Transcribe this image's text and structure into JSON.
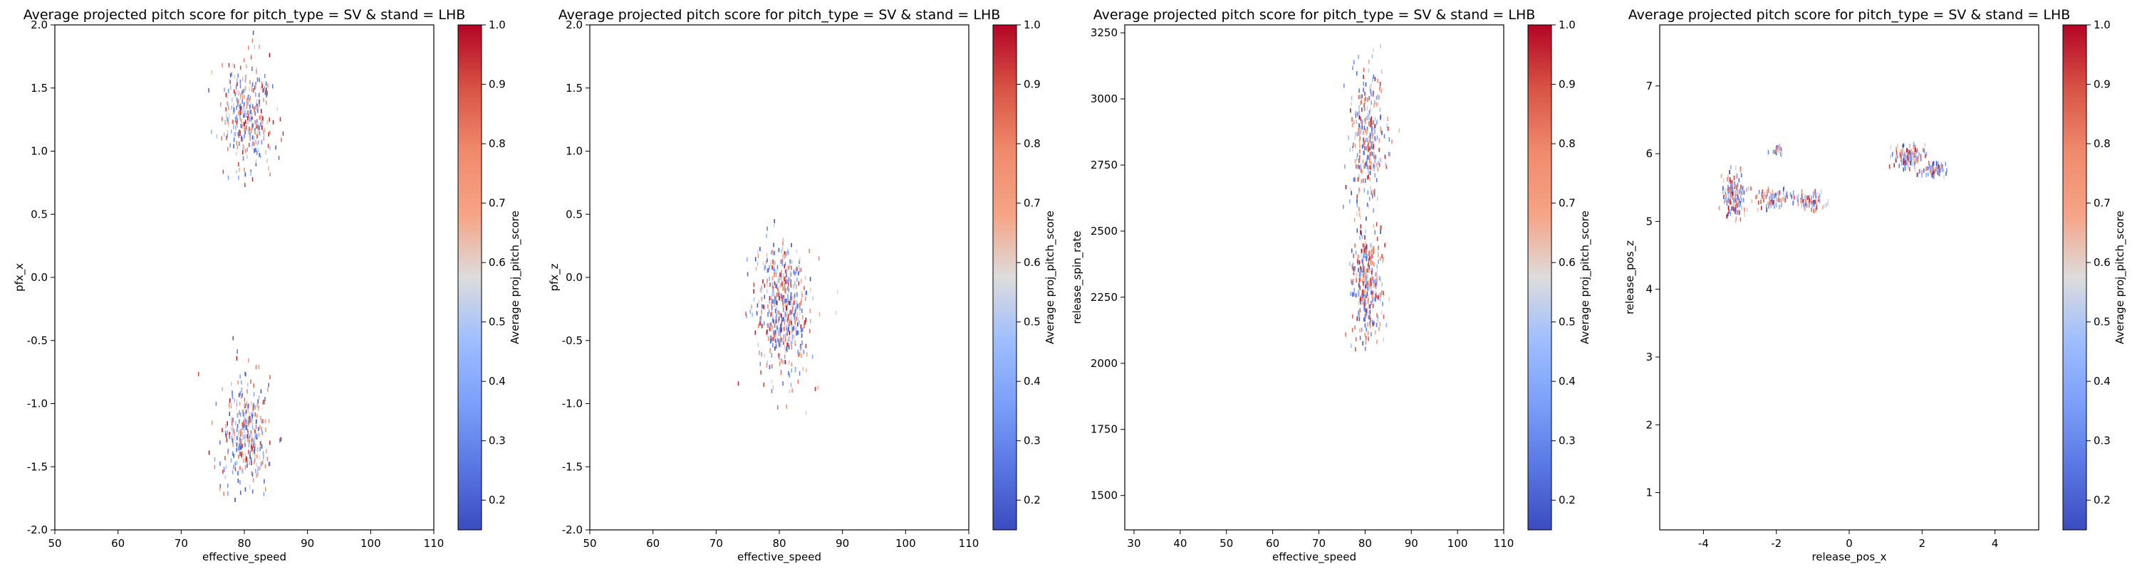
{
  "figure": {
    "colormap_name": "coolwarm",
    "colormap_stops": [
      [
        0.0,
        "#3b4cc0"
      ],
      [
        0.125,
        "#5977e3"
      ],
      [
        0.25,
        "#7b9ff9"
      ],
      [
        0.375,
        "#9ebeff"
      ],
      [
        0.5,
        "#dddcdc"
      ],
      [
        0.625,
        "#f6a385"
      ],
      [
        0.75,
        "#f08a6c"
      ],
      [
        0.875,
        "#d75344"
      ],
      [
        1.0,
        "#b40426"
      ]
    ]
  },
  "chart_data": [
    {
      "type": "scatter",
      "title": "Average projected pitch score for pitch_type = SV & stand = LHB",
      "xlabel": "effective_speed",
      "ylabel": "pfx_x",
      "colorbar_label": "Average proj_pitch_score",
      "xlim": [
        50,
        110
      ],
      "ylim": [
        -2.0,
        2.0
      ],
      "xticks": [
        "50",
        "60",
        "70",
        "80",
        "90",
        "100",
        "110"
      ],
      "yticks": [
        "-2.0",
        "-1.5",
        "-1.0",
        "-0.5",
        "0.0",
        "0.5",
        "1.0",
        "1.5",
        "2.0"
      ],
      "cbar_ticks": [
        "0.2",
        "0.3",
        "0.4",
        "0.5",
        "0.6",
        "0.7",
        "0.8",
        "0.9",
        "1.0"
      ],
      "clim": [
        0.15,
        1.0
      ],
      "clusters": [
        {
          "x_center": 80.5,
          "y_center": 1.3,
          "x_spread": 2.0,
          "y_spread": 0.22,
          "y_min": 0.15,
          "y_max": 1.95,
          "count": 320
        },
        {
          "x_center": 80.0,
          "y_center": -1.25,
          "x_spread": 1.9,
          "y_spread": 0.22,
          "y_min": -1.85,
          "y_max": -0.2,
          "count": 320
        }
      ]
    },
    {
      "type": "scatter",
      "title": "Average projected pitch score for pitch_type = SV & stand = LHB",
      "xlabel": "effective_speed",
      "ylabel": "pfx_z",
      "colorbar_label": "Average proj_pitch_score",
      "xlim": [
        50,
        110
      ],
      "ylim": [
        -2.0,
        2.0
      ],
      "xticks": [
        "50",
        "60",
        "70",
        "80",
        "90",
        "100",
        "110"
      ],
      "yticks": [
        "-2.0",
        "-1.5",
        "-1.0",
        "-0.5",
        "0.0",
        "0.5",
        "1.0",
        "1.5",
        "2.0"
      ],
      "cbar_ticks": [
        "0.2",
        "0.3",
        "0.4",
        "0.5",
        "0.6",
        "0.7",
        "0.8",
        "0.9",
        "1.0"
      ],
      "clim": [
        0.15,
        1.0
      ],
      "clusters": [
        {
          "x_center": 80.5,
          "y_center": -0.25,
          "x_spread": 2.2,
          "y_spread": 0.28,
          "y_min": -1.15,
          "y_max": 0.5,
          "count": 520
        }
      ]
    },
    {
      "type": "scatter",
      "title": "Average projected pitch score for pitch_type = SV & stand = LHB",
      "xlabel": "effective_speed",
      "ylabel": "release_spin_rate",
      "colorbar_label": "Average proj_pitch_score",
      "xlim": [
        28,
        110
      ],
      "ylim": [
        1370,
        3280
      ],
      "xticks": [
        "30",
        "40",
        "50",
        "60",
        "70",
        "80",
        "90",
        "100",
        "110"
      ],
      "yticks": [
        "1500",
        "1750",
        "2000",
        "2250",
        "2500",
        "2750",
        "3000",
        "3250"
      ],
      "cbar_ticks": [
        "0.2",
        "0.3",
        "0.4",
        "0.5",
        "0.6",
        "0.7",
        "0.8",
        "0.9",
        "1.0"
      ],
      "clim": [
        0.15,
        1.0
      ],
      "clusters": [
        {
          "x_center": 80.5,
          "y_center": 2850,
          "x_spread": 1.8,
          "y_spread": 140,
          "y_min": 2450,
          "y_max": 3200,
          "count": 300
        },
        {
          "x_center": 80.5,
          "y_center": 2300,
          "x_spread": 1.8,
          "y_spread": 110,
          "y_min": 1450,
          "y_max": 2620,
          "count": 330
        }
      ]
    },
    {
      "type": "scatter",
      "title": "Average projected pitch score for pitch_type = SV & stand = LHB",
      "xlabel": "release_pos_x",
      "ylabel": "release_pos_z",
      "colorbar_label": "Average proj_pitch_score",
      "xlim": [
        -5.2,
        5.2
      ],
      "ylim": [
        0.45,
        7.9
      ],
      "xticks": [
        "-4",
        "-2",
        "0",
        "2",
        "4"
      ],
      "yticks": [
        "1",
        "2",
        "3",
        "4",
        "5",
        "6",
        "7"
      ],
      "cbar_ticks": [
        "0.2",
        "0.3",
        "0.4",
        "0.5",
        "0.6",
        "0.7",
        "0.8",
        "0.9",
        "1.0"
      ],
      "clim": [
        0.15,
        1.0
      ],
      "clusters": [
        {
          "x_center": -3.2,
          "y_center": 5.4,
          "x_spread": 0.15,
          "y_spread": 0.17,
          "y_min": 5.0,
          "y_max": 5.85,
          "count": 160
        },
        {
          "x_center": -2.2,
          "y_center": 5.35,
          "x_spread": 0.2,
          "y_spread": 0.08,
          "y_min": 5.1,
          "y_max": 5.55,
          "count": 80
        },
        {
          "x_center": -2.0,
          "y_center": 6.05,
          "x_spread": 0.12,
          "y_spread": 0.05,
          "y_min": 5.95,
          "y_max": 6.15,
          "count": 18
        },
        {
          "x_center": -1.1,
          "y_center": 5.3,
          "x_spread": 0.22,
          "y_spread": 0.07,
          "y_min": 5.1,
          "y_max": 5.5,
          "count": 80
        },
        {
          "x_center": 1.6,
          "y_center": 5.95,
          "x_spread": 0.22,
          "y_spread": 0.09,
          "y_min": 5.7,
          "y_max": 6.25,
          "count": 140
        },
        {
          "x_center": 2.3,
          "y_center": 5.75,
          "x_spread": 0.18,
          "y_spread": 0.06,
          "y_min": 5.6,
          "y_max": 5.9,
          "count": 70
        }
      ]
    }
  ]
}
